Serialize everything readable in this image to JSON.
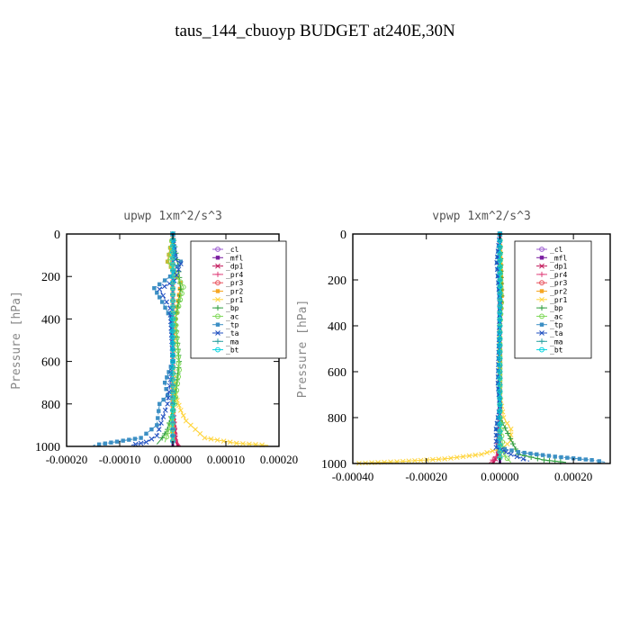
{
  "page_title": "taus_144_cbuoyp  BUDGET at240E,30N",
  "legend_entries": [
    "_cl",
    "_mfl",
    "_dp1",
    "_pr4",
    "_pr3",
    "_pr2",
    "_pr1",
    "_bp",
    "_ac",
    "_tp",
    "_ta",
    "_ma",
    "_bt"
  ],
  "colors": {
    "_cl": "#9b59d0",
    "_mfl": "#7a1fa0",
    "_dp1": "#c2185b",
    "_pr4": "#e0407a",
    "_pr3": "#e8505a",
    "_pr2": "#f5a623",
    "_pr1": "#ffd43b",
    "_bp": "#2e9e3e",
    "_ac": "#7ed957",
    "_tp": "#3c8fc4",
    "_ta": "#2050c0",
    "_ma": "#2aa0a0",
    "_bt": "#00d4e0"
  },
  "chart_data": [
    {
      "type": "line",
      "title": "upwp  1xm^2/s^3",
      "ylabel": "Pressure [hPa]",
      "xlabel": "",
      "xlim": [
        -0.0002,
        0.0002
      ],
      "ylim": [
        1000,
        0
      ],
      "xticks": [
        "-0.00020",
        "-0.00010",
        "0.00000",
        "0.00010",
        "0.00020"
      ],
      "yticks": [
        "0",
        "200",
        "400",
        "600",
        "800",
        "1000"
      ],
      "grid": false,
      "legend": "top-right",
      "series": [
        {
          "name": "_cl",
          "x": [
            0,
            0,
            0,
            0,
            0,
            0,
            0
          ],
          "y": [
            0,
            200,
            400,
            600,
            800,
            950,
            1000
          ]
        },
        {
          "name": "_mfl",
          "x": [
            0,
            0,
            0,
            0,
            0,
            0,
            0
          ],
          "y": [
            0,
            200,
            400,
            600,
            800,
            950,
            1000
          ]
        },
        {
          "name": "_dp1",
          "x": [
            0,
            0,
            0,
            0,
            0,
            5e-06,
            1e-05
          ],
          "y": [
            0,
            200,
            400,
            600,
            800,
            960,
            1000
          ]
        },
        {
          "name": "_pr4",
          "x": [
            0,
            0,
            0,
            0,
            0,
            5e-06,
            1.5e-05
          ],
          "y": [
            0,
            200,
            400,
            600,
            800,
            970,
            1000
          ]
        },
        {
          "name": "_pr3",
          "x": [
            0,
            0,
            0,
            0,
            0,
            0,
            0
          ],
          "y": [
            0,
            200,
            400,
            600,
            800,
            950,
            1000
          ]
        },
        {
          "name": "_pr2",
          "x": [
            0,
            -1e-05,
            1.5e-05,
            5e-06,
            0,
            0,
            0
          ],
          "y": [
            0,
            130,
            230,
            400,
            600,
            900,
            1000
          ]
        },
        {
          "name": "_pr1",
          "x": [
            0,
            0,
            0,
            0,
            5e-06,
            1.5e-05,
            2.5e-05,
            6e-05,
            0.00012,
            0.00018
          ],
          "y": [
            0,
            200,
            400,
            600,
            760,
            830,
            880,
            960,
            985,
            995
          ]
        },
        {
          "name": "_bp",
          "x": [
            0,
            1e-05,
            1.5e-05,
            5e-06,
            1.2e-05,
            3e-06,
            -1e-05,
            -2e-05,
            -3e-05
          ],
          "y": [
            0,
            150,
            260,
            400,
            600,
            800,
            920,
            960,
            990
          ]
        },
        {
          "name": "_ac",
          "x": [
            0,
            -8e-06,
            2e-05,
            5e-06,
            1.2e-05,
            4e-06,
            -8e-06,
            -1.5e-05
          ],
          "y": [
            0,
            130,
            250,
            400,
            640,
            800,
            930,
            980
          ]
        },
        {
          "name": "_tp",
          "x": [
            0,
            5e-06,
            1.5e-05,
            -5e-06,
            -3.5e-05,
            -2e-05,
            -3e-06,
            0,
            -1.5e-05,
            -1e-05,
            -2.5e-05,
            -3e-05,
            -6e-05,
            -0.00015
          ],
          "y": [
            0,
            100,
            130,
            200,
            255,
            320,
            400,
            600,
            700,
            760,
            800,
            900,
            960,
            995
          ]
        },
        {
          "name": "_ta",
          "x": [
            0,
            5e-06,
            1.5e-05,
            3e-06,
            -2.5e-05,
            -5e-06,
            0,
            -1e-05,
            -3e-05,
            -5e-05,
            -8e-05
          ],
          "y": [
            0,
            120,
            140,
            220,
            260,
            350,
            600,
            800,
            950,
            980,
            995
          ]
        },
        {
          "name": "_ma",
          "x": [
            0,
            0,
            0,
            0,
            0,
            0,
            0
          ],
          "y": [
            0,
            200,
            400,
            600,
            800,
            950,
            1000
          ]
        },
        {
          "name": "_bt",
          "x": [
            0,
            0,
            0,
            0,
            0,
            0,
            0
          ],
          "y": [
            0,
            200,
            400,
            600,
            800,
            950,
            1000
          ]
        }
      ]
    },
    {
      "type": "line",
      "title": "vpwp  1xm^2/s^3",
      "ylabel": "Pressure [hPa]",
      "xlabel": "",
      "xlim": [
        -0.0004,
        0.0003
      ],
      "ylim": [
        1000,
        0
      ],
      "xticks": [
        "-0.00040",
        "-0.00020",
        "0.00000",
        "0.00020"
      ],
      "yticks": [
        "0",
        "200",
        "400",
        "600",
        "800",
        "1000"
      ],
      "grid": false,
      "legend": "top-right",
      "series": [
        {
          "name": "_cl",
          "x": [
            0,
            0,
            0,
            0,
            0,
            0,
            0
          ],
          "y": [
            0,
            200,
            400,
            600,
            800,
            950,
            1000
          ]
        },
        {
          "name": "_mfl",
          "x": [
            0,
            0,
            0,
            0,
            0,
            0,
            0
          ],
          "y": [
            0,
            200,
            400,
            600,
            800,
            950,
            1000
          ]
        },
        {
          "name": "_dp1",
          "x": [
            0,
            0,
            0,
            0,
            0,
            -5e-06,
            -2e-05
          ],
          "y": [
            0,
            200,
            400,
            600,
            800,
            960,
            1000
          ]
        },
        {
          "name": "_pr4",
          "x": [
            0,
            0,
            0,
            0,
            0,
            -1e-05,
            -3e-05
          ],
          "y": [
            0,
            200,
            400,
            600,
            800,
            970,
            1000
          ]
        },
        {
          "name": "_pr3",
          "x": [
            0,
            0,
            0,
            0,
            0,
            0,
            0
          ],
          "y": [
            0,
            200,
            400,
            600,
            800,
            950,
            1000
          ]
        },
        {
          "name": "_pr2",
          "x": [
            0,
            5e-06,
            0,
            0,
            0,
            0,
            0
          ],
          "y": [
            0,
            270,
            400,
            600,
            800,
            950,
            1000
          ]
        },
        {
          "name": "_pr1",
          "x": [
            0,
            0,
            0,
            1e-05,
            3e-05,
            3e-05,
            1e-05,
            -5e-05,
            -0.00015,
            -0.00028,
            -0.0004
          ],
          "y": [
            0,
            400,
            700,
            800,
            850,
            900,
            930,
            960,
            980,
            992,
            1000
          ]
        },
        {
          "name": "_bp",
          "x": [
            0,
            5e-06,
            0,
            0,
            0,
            5e-05,
            0.00012,
            0.00018
          ],
          "y": [
            0,
            270,
            400,
            600,
            800,
            960,
            985,
            995
          ]
        },
        {
          "name": "_ac",
          "x": [
            0,
            3e-06,
            4e-06,
            0,
            0,
            1e-05,
            3e-05
          ],
          "y": [
            0,
            260,
            300,
            400,
            800,
            960,
            995
          ]
        },
        {
          "name": "_tp",
          "x": [
            0,
            -8e-06,
            0,
            -5e-06,
            0,
            -1e-05,
            -5e-06,
            5e-05,
            0.00015,
            0.00025,
            0.00029
          ],
          "y": [
            0,
            125,
            300,
            650,
            750,
            850,
            930,
            950,
            970,
            985,
            995
          ]
        },
        {
          "name": "_ta",
          "x": [
            0,
            -8e-06,
            0,
            -5e-06,
            0,
            -1e-05,
            -1e-05,
            3e-05,
            8e-05
          ],
          "y": [
            0,
            125,
            300,
            650,
            750,
            850,
            930,
            960,
            990
          ]
        },
        {
          "name": "_ma",
          "x": [
            0,
            0,
            0,
            0,
            0,
            0,
            0
          ],
          "y": [
            0,
            200,
            400,
            600,
            800,
            950,
            1000
          ]
        },
        {
          "name": "_bt",
          "x": [
            0,
            0,
            0,
            0,
            0,
            0,
            0
          ],
          "y": [
            0,
            200,
            400,
            600,
            800,
            950,
            1000
          ]
        }
      ]
    }
  ]
}
